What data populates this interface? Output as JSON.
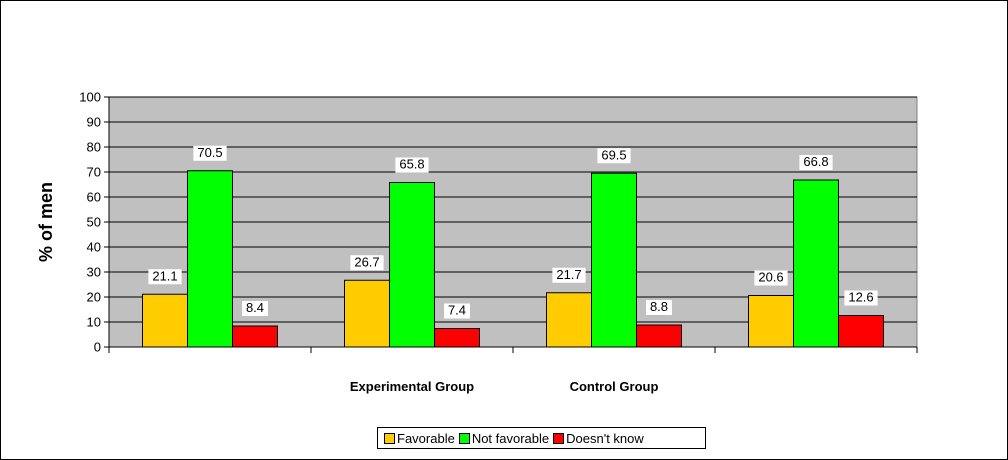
{
  "chart_data": {
    "type": "bar",
    "title": "",
    "ylabel": "% of men",
    "xlabel": "",
    "ylim": [
      0,
      100
    ],
    "yticks": [
      0,
      10,
      20,
      30,
      40,
      50,
      60,
      70,
      80,
      90,
      100
    ],
    "grid": true,
    "plot_background": "#c0c0c0",
    "legend_position": "bottom",
    "categories": [
      "",
      "Experimental Group",
      "Control Group",
      ""
    ],
    "series": [
      {
        "name": "Favorable",
        "color": "#ffcc00",
        "values": [
          21.1,
          26.7,
          21.7,
          20.6
        ]
      },
      {
        "name": "Not favorable",
        "color": "#00ff00",
        "values": [
          70.5,
          65.8,
          69.5,
          66.8
        ]
      },
      {
        "name": "Doesn't know",
        "color": "#ff0000",
        "values": [
          8.4,
          7.4,
          8.8,
          12.6
        ]
      }
    ]
  }
}
